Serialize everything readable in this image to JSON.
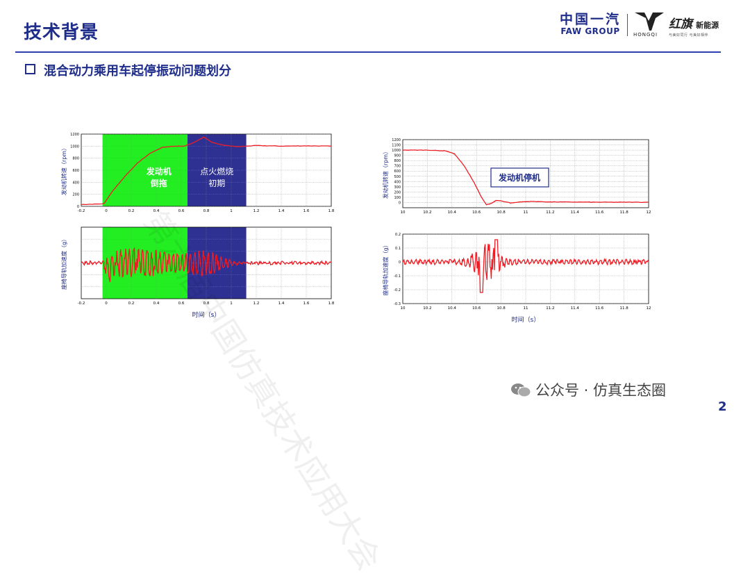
{
  "header": {
    "title": "技术背景",
    "logos": {
      "faw_cn": "中国一汽",
      "faw_en": "FAW GROUP",
      "hongqi_en": "HONGQI",
      "hongqi_script": "红旗",
      "hongqi_ne": "新能源",
      "hongqi_slogan": "与美好同行  与美好相伴"
    }
  },
  "section": {
    "title": "混合动力乘用车起停振动问题划分"
  },
  "colors": {
    "accent": "#1f2d8a",
    "curve": "#ee1c24",
    "green_phase": "#22ee22",
    "blue_phase": "#2e3191"
  },
  "chart_data": [
    {
      "type": "line",
      "id": "start-speed",
      "ylabel": "发动机转速（rpm）",
      "xlim": [
        -0.2,
        1.8
      ],
      "ylim": [
        0,
        1200
      ],
      "xticks": [
        "-0.2",
        "0",
        "0.2",
        "0.4",
        "0.6",
        "0.8",
        "1",
        "1.2",
        "1.4",
        "1.6",
        "1.8"
      ],
      "yticks": [
        "0",
        "200",
        "400",
        "600",
        "800",
        "1000",
        "1200"
      ],
      "series": [
        {
          "x": [
            -0.2,
            -0.02,
            0.05,
            0.15,
            0.25,
            0.35,
            0.45,
            0.55,
            0.63,
            0.72,
            0.78,
            0.85,
            0.95,
            1.05,
            1.2,
            1.4,
            1.6,
            1.8
          ],
          "y": [
            30,
            40,
            250,
            500,
            720,
            880,
            980,
            1000,
            1000,
            1080,
            1150,
            1060,
            1010,
            990,
            1010,
            1000,
            1005,
            1000
          ]
        }
      ],
      "regions": [
        {
          "x0": -0.03,
          "x1": 0.65,
          "label_lines": [
            "发动机",
            "倒拖"
          ],
          "color": "#22ee22"
        },
        {
          "x0": 0.65,
          "x1": 1.12,
          "label_lines": [
            "点火燃烧",
            "初期"
          ],
          "color": "#2e3191"
        }
      ]
    },
    {
      "type": "line",
      "id": "start-accel",
      "xlabel": "时间（s）",
      "ylabel": "座椅导轨加速度（g）",
      "xlim": [
        -0.2,
        1.8
      ],
      "xticks": [
        "-0.2",
        "0",
        "0.2",
        "0.4",
        "0.6",
        "0.8",
        "1",
        "1.2",
        "1.4",
        "1.6",
        "1.8"
      ],
      "regions": [
        {
          "x0": -0.03,
          "x1": 0.65,
          "color": "#22ee22"
        },
        {
          "x0": 0.65,
          "x1": 1.12,
          "color": "#2e3191"
        }
      ]
    },
    {
      "type": "line",
      "id": "stop-speed",
      "ylabel": "发动机转速（rpm）",
      "xlim": [
        10,
        12
      ],
      "ylim": [
        -100,
        1200
      ],
      "xticks": [
        "10",
        "10.2",
        "10.4",
        "10.6",
        "10.8",
        "11",
        "11.2",
        "11.4",
        "11.6",
        "11.8",
        "12"
      ],
      "yticks": [
        "0",
        "100",
        "200",
        "300",
        "400",
        "500",
        "600",
        "700",
        "800",
        "900",
        "1000",
        "1100",
        "1200"
      ],
      "annotation": "发动机停机",
      "series": [
        {
          "x": [
            10,
            10.2,
            10.35,
            10.42,
            10.5,
            10.58,
            10.64,
            10.68,
            10.72,
            10.76,
            10.8,
            10.88,
            10.95,
            11.05,
            11.2,
            11.4,
            11.6,
            11.8,
            12
          ],
          "y": [
            1000,
            1000,
            985,
            930,
            700,
            380,
            100,
            -40,
            -20,
            40,
            30,
            -10,
            10,
            20,
            10,
            8,
            5,
            5,
            5
          ]
        }
      ]
    },
    {
      "type": "line",
      "id": "stop-accel",
      "xlabel": "时间（s）",
      "ylabel": "座椅导轨加速度（g）",
      "xlim": [
        10,
        12
      ],
      "ylim": [
        -0.3,
        0.2
      ],
      "xticks": [
        "10",
        "10.2",
        "10.4",
        "10.6",
        "10.8",
        "11",
        "11.2",
        "11.4",
        "11.6",
        "11.8",
        "12"
      ],
      "yticks": [
        "-0.3",
        "-0.2",
        "-0.1",
        "0",
        "0.1",
        "0.2"
      ]
    }
  ],
  "footer": {
    "wechat": "公众号 · 仿真生态圈",
    "page": "2"
  },
  "watermark": "第六届中国仿真技术应用大会"
}
